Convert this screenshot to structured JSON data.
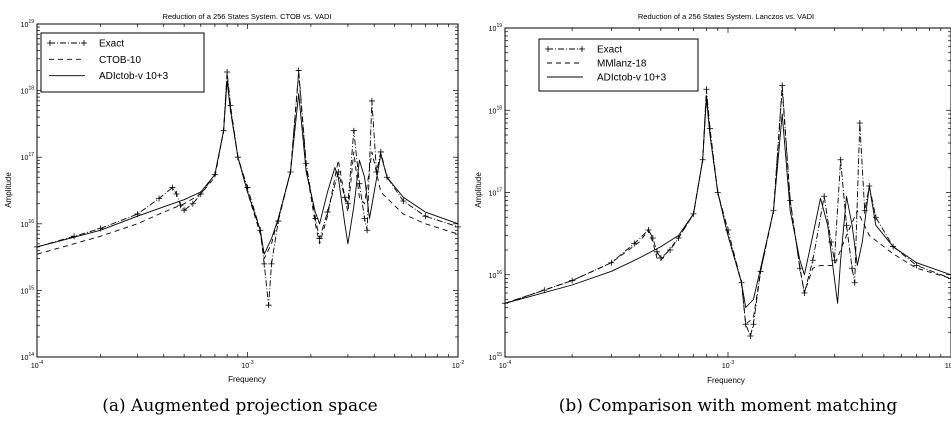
{
  "captions": [
    "(a) Augmented projection space",
    "(b) Comparison with moment matching"
  ],
  "chart_data": [
    {
      "type": "line",
      "title": "Reduction of a 256 States System.  CTOB vs. VADI",
      "xlabel": "Frequency",
      "ylabel": "Amplitude",
      "xscale": "log",
      "yscale": "log",
      "xlim": [
        0.0001,
        0.01
      ],
      "ylim": [
        100000000000000.0,
        1e+19
      ],
      "grid": false,
      "legend_position": "top-left",
      "series": [
        {
          "name": "Exact",
          "style": "dash-dot with + markers",
          "points": [
            [
              0.0001,
              4500000000000000.0
            ],
            [
              0.00015,
              6500000000000000.0
            ],
            [
              0.0002,
              8500000000000000.0
            ],
            [
              0.0003,
              1.4e+16
            ],
            [
              0.00038,
              2.4e+16
            ],
            [
              0.00044,
              3.5e+16
            ],
            [
              0.00046,
              2.8e+16
            ],
            [
              0.00048,
              1.9e+16
            ],
            [
              0.0005,
              1.6e+16
            ],
            [
              0.00055,
              2e+16
            ],
            [
              0.0006,
              2.8e+16
            ],
            [
              0.0007,
              5.5e+16
            ],
            [
              0.00077,
              2.5e+17
            ],
            [
              0.0008,
              1.9e+18
            ],
            [
              0.00083,
              6e+17
            ],
            [
              0.0009,
              1e+17
            ],
            [
              0.001,
              3.5e+16
            ],
            [
              0.00115,
              8000000000000000.0
            ],
            [
              0.0012,
              2500000000000000.0
            ],
            [
              0.00126,
              600000000000000.0
            ],
            [
              0.0013,
              2500000000000000.0
            ],
            [
              0.0014,
              1.1e+16
            ],
            [
              0.0016,
              6e+16
            ],
            [
              0.00175,
              2e+18
            ],
            [
              0.0019,
              8e+16
            ],
            [
              0.0021,
              1.2e+16
            ],
            [
              0.0022,
              6000000000000000.0
            ],
            [
              0.0024,
              1.5e+16
            ],
            [
              0.0027,
              6e+16
            ],
            [
              0.0029,
              2.5e+16
            ],
            [
              0.003,
              2e+16
            ],
            [
              0.0032,
              2.5e+17
            ],
            [
              0.0034,
              4e+16
            ],
            [
              0.0036,
              1.2e+16
            ],
            [
              0.0037,
              8000000000000000.0
            ],
            [
              0.0039,
              7e+17
            ],
            [
              0.0041,
              6e+16
            ],
            [
              0.0043,
              1.2e+17
            ],
            [
              0.0046,
              5e+16
            ],
            [
              0.0055,
              2.2e+16
            ],
            [
              0.007,
              1.3e+16
            ],
            [
              0.01,
              9000000000000000.0
            ]
          ]
        },
        {
          "name": "CTOB-10",
          "style": "dashed",
          "points": [
            [
              0.0001,
              3500000000000000.0
            ],
            [
              0.0002,
              6500000000000000.0
            ],
            [
              0.0003,
              1e+16
            ],
            [
              0.0004,
              1.5e+16
            ],
            [
              0.0005,
              2e+16
            ],
            [
              0.0006,
              2.8e+16
            ],
            [
              0.0007,
              5e+16
            ],
            [
              0.00077,
              2.5e+17
            ],
            [
              0.0008,
              1.7e+18
            ],
            [
              0.00083,
              5e+17
            ],
            [
              0.0009,
              1e+17
            ],
            [
              0.001,
              3e+16
            ],
            [
              0.00115,
              7000000000000000.0
            ],
            [
              0.0012,
              3000000000000000.0
            ],
            [
              0.0013,
              5000000000000000.0
            ],
            [
              0.0014,
              1.2e+16
            ],
            [
              0.0016,
              6e+16
            ],
            [
              0.00175,
              1.8e+18
            ],
            [
              0.0019,
              7e+16
            ],
            [
              0.0021,
              1e+16
            ],
            [
              0.0022,
              5000000000000000.0
            ],
            [
              0.0024,
              1.3e+16
            ],
            [
              0.0027,
              9e+16
            ],
            [
              0.0029,
              2.5e+16
            ],
            [
              0.003,
              1.5e+16
            ],
            [
              0.0032,
              1.2e+17
            ],
            [
              0.0034,
              2.5e+16
            ],
            [
              0.0036,
              2e+16
            ],
            [
              0.0039,
              1.2e+17
            ],
            [
              0.0043,
              3e+16
            ],
            [
              0.0055,
              1.4e+16
            ],
            [
              0.007,
              1e+16
            ],
            [
              0.01,
              7000000000000000.0
            ]
          ]
        },
        {
          "name": "ADIctob-v 10+3",
          "style": "solid",
          "points": [
            [
              0.0001,
              4500000000000000.0
            ],
            [
              0.0002,
              8000000000000000.0
            ],
            [
              0.0003,
              1.3e+16
            ],
            [
              0.0004,
              1.8e+16
            ],
            [
              0.0005,
              2.3e+16
            ],
            [
              0.0006,
              3e+16
            ],
            [
              0.0007,
              5.5e+16
            ],
            [
              0.00077,
              2.5e+17
            ],
            [
              0.0008,
              1.4e+18
            ],
            [
              0.00083,
              5e+17
            ],
            [
              0.0009,
              1e+17
            ],
            [
              0.001,
              3e+16
            ],
            [
              0.00115,
              8000000000000000.0
            ],
            [
              0.0012,
              3500000000000000.0
            ],
            [
              0.0013,
              6000000000000000.0
            ],
            [
              0.0014,
              1.2e+16
            ],
            [
              0.0016,
              6e+16
            ],
            [
              0.00175,
              9e+17
            ],
            [
              0.0019,
              6e+16
            ],
            [
              0.0021,
              1.5e+16
            ],
            [
              0.0022,
              1e+16
            ],
            [
              0.0024,
              3e+16
            ],
            [
              0.0026,
              7e+16
            ],
            [
              0.0027,
              5e+16
            ],
            [
              0.0029,
              1e+16
            ],
            [
              0.003,
              5000000000000000.0
            ],
            [
              0.0032,
              1.8e+16
            ],
            [
              0.0034,
              9e+16
            ],
            [
              0.0036,
              5e+16
            ],
            [
              0.0038,
              1.2e+16
            ],
            [
              0.004,
              3e+16
            ],
            [
              0.0043,
              1.1e+17
            ],
            [
              0.0046,
              5e+16
            ],
            [
              0.0055,
              2.5e+16
            ],
            [
              0.007,
              1.5e+16
            ],
            [
              0.01,
              1e+16
            ]
          ]
        }
      ]
    },
    {
      "type": "line",
      "title": "Reduction of a 256 States System.  Lanczos vs. VADI",
      "xlabel": "Frequency",
      "ylabel": "Amplitude",
      "xscale": "log",
      "yscale": "log",
      "xlim": [
        0.0001,
        0.01
      ],
      "ylim": [
        1000000000000000.0,
        1e+19
      ],
      "grid": false,
      "legend_position": "top-left",
      "series": [
        {
          "name": "Exact",
          "style": "dash-dot with + markers",
          "points": [
            [
              0.0001,
              4500000000000000.0
            ],
            [
              0.00015,
              6500000000000000.0
            ],
            [
              0.0002,
              8500000000000000.0
            ],
            [
              0.0003,
              1.4e+16
            ],
            [
              0.00038,
              2.4e+16
            ],
            [
              0.00044,
              3.5e+16
            ],
            [
              0.00046,
              2.8e+16
            ],
            [
              0.00048,
              1.9e+16
            ],
            [
              0.0005,
              1.6e+16
            ],
            [
              0.00055,
              2e+16
            ],
            [
              0.0006,
              2.8e+16
            ],
            [
              0.0007,
              5.5e+16
            ],
            [
              0.00077,
              2.5e+17
            ],
            [
              0.0008,
              1.8e+18
            ],
            [
              0.00083,
              6e+17
            ],
            [
              0.0009,
              1e+17
            ],
            [
              0.001,
              3.5e+16
            ],
            [
              0.00115,
              8000000000000000.0
            ],
            [
              0.0012,
              2500000000000000.0
            ],
            [
              0.00126,
              1800000000000000.0
            ],
            [
              0.0013,
              2500000000000000.0
            ],
            [
              0.0014,
              1.1e+16
            ],
            [
              0.0016,
              6e+16
            ],
            [
              0.00175,
              2e+18
            ],
            [
              0.0019,
              8e+16
            ],
            [
              0.0021,
              1.2e+16
            ],
            [
              0.0022,
              6000000000000000.0
            ],
            [
              0.0024,
              1.5e+16
            ],
            [
              0.0027,
              9e+16
            ],
            [
              0.0029,
              2.5e+16
            ],
            [
              0.003,
              1.5e+16
            ],
            [
              0.0032,
              2.5e+17
            ],
            [
              0.0034,
              4e+16
            ],
            [
              0.0036,
              1.2e+16
            ],
            [
              0.0037,
              8000000000000000.0
            ],
            [
              0.0039,
              7e+17
            ],
            [
              0.0041,
              6e+16
            ],
            [
              0.0043,
              1.2e+17
            ],
            [
              0.0046,
              5e+16
            ],
            [
              0.0055,
              2.2e+16
            ],
            [
              0.007,
              1.3e+16
            ],
            [
              0.01,
              9000000000000000.0
            ]
          ]
        },
        {
          "name": "MMlanz-18",
          "style": "dashed",
          "points": [
            [
              0.0001,
              4500000000000000.0
            ],
            [
              0.0002,
              8500000000000000.0
            ],
            [
              0.0003,
              1.4e+16
            ],
            [
              0.0004,
              2.5e+16
            ],
            [
              0.00044,
              3.5e+16
            ],
            [
              0.00046,
              2.5e+16
            ],
            [
              0.00048,
              1.6e+16
            ],
            [
              0.0005,
              1.5e+16
            ],
            [
              0.0006,
              2.8e+16
            ],
            [
              0.0007,
              5.5e+16
            ],
            [
              0.00077,
              2.5e+17
            ],
            [
              0.0008,
              1.6e+18
            ],
            [
              0.00083,
              5e+17
            ],
            [
              0.0009,
              1e+17
            ],
            [
              0.001,
              3e+16
            ],
            [
              0.00115,
              8000000000000000.0
            ],
            [
              0.0012,
              2500000000000000.0
            ],
            [
              0.0013,
              3000000000000000.0
            ],
            [
              0.0014,
              1.1e+16
            ],
            [
              0.0016,
              6e+16
            ],
            [
              0.00175,
              1.8e+18
            ],
            [
              0.0019,
              8e+16
            ],
            [
              0.0021,
              1.2e+16
            ],
            [
              0.0022,
              6000000000000000.0
            ],
            [
              0.0024,
              1.2e+16
            ],
            [
              0.0026,
              1.3e+16
            ],
            [
              0.003,
              1.3e+16
            ],
            [
              0.0034,
              3e+16
            ],
            [
              0.0038,
              6e+16
            ],
            [
              0.0043,
              3e+16
            ],
            [
              0.0055,
              1.8e+16
            ],
            [
              0.007,
              1.2e+16
            ],
            [
              0.01,
              9000000000000000.0
            ]
          ]
        },
        {
          "name": "ADIctob-v 10+3",
          "style": "solid",
          "points": [
            [
              0.0001,
              4500000000000000.0
            ],
            [
              0.0002,
              7500000000000000.0
            ],
            [
              0.0003,
              1.1e+16
            ],
            [
              0.0004,
              1.6e+16
            ],
            [
              0.0005,
              2.2e+16
            ],
            [
              0.0006,
              3e+16
            ],
            [
              0.0007,
              5.5e+16
            ],
            [
              0.00077,
              2.5e+17
            ],
            [
              0.0008,
              1.4e+18
            ],
            [
              0.00083,
              5e+17
            ],
            [
              0.0009,
              1e+17
            ],
            [
              0.001,
              3e+16
            ],
            [
              0.00115,
              8000000000000000.0
            ],
            [
              0.0012,
              4000000000000000.0
            ],
            [
              0.0013,
              5000000000000000.0
            ],
            [
              0.0014,
              1.2e+16
            ],
            [
              0.0016,
              6e+16
            ],
            [
              0.00175,
              9e+17
            ],
            [
              0.0019,
              6e+16
            ],
            [
              0.0021,
              1.5e+16
            ],
            [
              0.0022,
              1e+16
            ],
            [
              0.0024,
              3e+16
            ],
            [
              0.0026,
              8.5e+16
            ],
            [
              0.0028,
              4e+16
            ],
            [
              0.003,
              9000000000000000.0
            ],
            [
              0.0031,
              4500000000000000.0
            ],
            [
              0.0032,
              1.5e+16
            ],
            [
              0.0034,
              9e+16
            ],
            [
              0.0036,
              4e+16
            ],
            [
              0.0038,
              1.3e+16
            ],
            [
              0.004,
              2.5e+16
            ],
            [
              0.0043,
              1.2e+17
            ],
            [
              0.0046,
              4e+16
            ],
            [
              0.0055,
              2.2e+16
            ],
            [
              0.007,
              1.4e+16
            ],
            [
              0.01,
              1e+16
            ]
          ]
        }
      ]
    }
  ]
}
